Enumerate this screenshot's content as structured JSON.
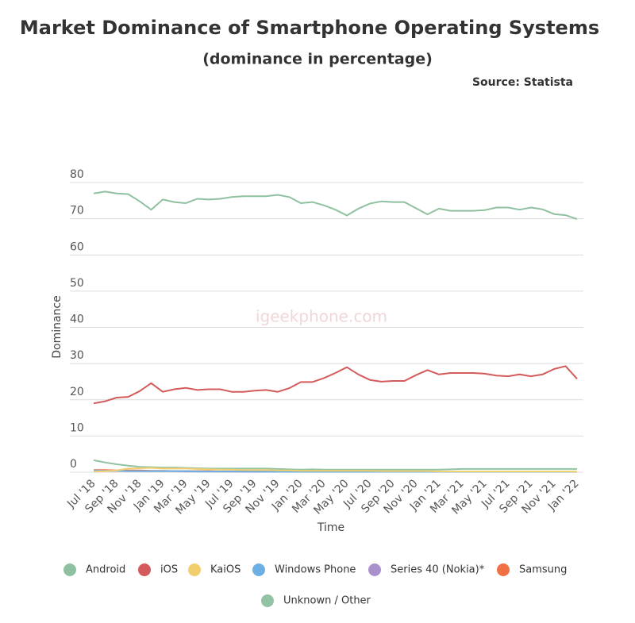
{
  "chart_data": {
    "type": "line",
    "title": "Market Dominance of Smartphone Operating Systems",
    "subtitle": "(dominance in percentage)",
    "source": "Source: Statista",
    "watermark": "igeekphone.com",
    "x_label": "Time",
    "y_label": "Dominance",
    "categories": [
      "Jul '18",
      null,
      "Sep '18",
      null,
      "Nov '18",
      null,
      "Jan '19",
      null,
      "Mar '19",
      null,
      "May '19",
      null,
      "Jul '19",
      null,
      "Sep '19",
      null,
      "Nov '19",
      null,
      "Jan '20",
      null,
      "Mar '20",
      null,
      "May '20",
      null,
      "Jul '20",
      null,
      "Sep '20",
      null,
      "Nov '20",
      null,
      "Jan '21",
      null,
      "Mar '21",
      null,
      "May '21",
      null,
      "Jul '21",
      null,
      "Sep '21",
      null,
      "Nov '21",
      null,
      "Jan '22"
    ],
    "ylim": [
      0,
      80
    ],
    "yticks": [
      0,
      10,
      20,
      30,
      40,
      50,
      60,
      70,
      80
    ],
    "grid": true,
    "series": [
      {
        "name": "Android",
        "color": "#8fc1a0",
        "values": [
          77,
          77.5,
          77,
          76.8,
          74.8,
          72.5,
          75.3,
          74.6,
          74.3,
          75.5,
          75.3,
          75.5,
          76,
          76.2,
          76.2,
          76.2,
          76.6,
          76,
          74.3,
          74.6,
          73.7,
          72.5,
          70.9,
          72.8,
          74.2,
          74.8,
          74.6,
          74.6,
          72.9,
          71.2,
          72.8,
          72.2,
          72.2,
          72.2,
          72.4,
          73.1,
          73.1,
          72.5,
          73.1,
          72.6,
          71.3,
          71,
          69.9
        ]
      },
      {
        "name": "iOS",
        "color": "#d45b5b",
        "values": [
          19,
          19.6,
          20.6,
          20.8,
          22.4,
          24.6,
          22.2,
          22.9,
          23.3,
          22.7,
          22.9,
          22.9,
          22.2,
          22.2,
          22.5,
          22.7,
          22.2,
          23.2,
          24.9,
          24.9,
          26,
          27.4,
          29,
          27,
          25.5,
          25,
          25.2,
          25.2,
          26.8,
          28.2,
          27,
          27.4,
          27.4,
          27.4,
          27.2,
          26.7,
          26.5,
          27,
          26.5,
          27,
          28.5,
          29.3,
          25.8
        ]
      },
      {
        "name": "KaiOS",
        "color": "#f1cf6f",
        "values": [
          0.2,
          0.3,
          0.5,
          1,
          1.1,
          1.2,
          1,
          1,
          1,
          0.9,
          0.8,
          0.7,
          0.7,
          0.6,
          0.6,
          0.6,
          0.5,
          0.5,
          0.4,
          0.4,
          0.4,
          0.4,
          0.4,
          0.4,
          0.4,
          0.3,
          0.3,
          0.3,
          0.3,
          0.3,
          0.2,
          0.2,
          0.2,
          0.2,
          0.2,
          0.2,
          0.2,
          0.2,
          0.2,
          0.2,
          0.2,
          0.2,
          0.2
        ]
      },
      {
        "name": "Windows Phone",
        "color": "#6cb0e3",
        "values": [
          0.4,
          0.4,
          0.4,
          0.3,
          0.3,
          0.3,
          0.3,
          0.3,
          0.3,
          0.2,
          0.2,
          0.2,
          0.2,
          0.2,
          0.2,
          0.1,
          0.1,
          0.1,
          0.1,
          0.1,
          0.1,
          0.1,
          0.1,
          0.1,
          0.1,
          0.1,
          0.1,
          0.1,
          0.1,
          0.1,
          0.1,
          0.1,
          0.1,
          0.1,
          0.1,
          0.1,
          0.1,
          0.1,
          0.1,
          0.1,
          0.1,
          0.1,
          0.1
        ]
      },
      {
        "name": "Series 40 (Nokia)*",
        "color": "#a992cc",
        "values": [
          0.5,
          0.4,
          0.4,
          0.3,
          0.3,
          0.3,
          0.3,
          0.3,
          0.2,
          0.2,
          0.2,
          0.2,
          0.2,
          0.1,
          0.1,
          0.1,
          0.1,
          0.1,
          0.1,
          0.1,
          0.1,
          0.1,
          0.1,
          0.1,
          0.1,
          0.1,
          0.1,
          0.1,
          0.1,
          0.1,
          0.1,
          0.1,
          0.1,
          0.1,
          0.1,
          0.1,
          0.1,
          0.1,
          0.1,
          0.1,
          0.1,
          0.1,
          0.1
        ]
      },
      {
        "name": "Samsung",
        "color": "#ef7042",
        "values": [
          0.6,
          0.6,
          0.5,
          0.5,
          0.5,
          0.4,
          0.4,
          0.3,
          0.3,
          0.3,
          0.3,
          0.2,
          0.2,
          0.2,
          0.2,
          0.2,
          0.2,
          0.2,
          0.1,
          0.1,
          0.1,
          0.1,
          0.1,
          0.1,
          0.1,
          0.1,
          0.1,
          0.1,
          0.1,
          0.1,
          0.1,
          0.1,
          0.1,
          0.1,
          0.1,
          0.1,
          0.1,
          0.1,
          0.1,
          0.1,
          0.1,
          0.1,
          0.1
        ]
      },
      {
        "name": "Unknown / Other",
        "color": "#93c3a5",
        "values": [
          3.3,
          2.7,
          2.2,
          1.8,
          1.5,
          1.4,
          1.3,
          1.3,
          1.2,
          1.1,
          1,
          1,
          1,
          1,
          1,
          1,
          0.9,
          0.8,
          0.7,
          0.8,
          0.7,
          0.7,
          0.7,
          0.7,
          0.7,
          0.7,
          0.7,
          0.7,
          0.7,
          0.7,
          0.7,
          0.8,
          0.9,
          0.9,
          0.9,
          0.9,
          0.9,
          0.9,
          0.9,
          0.9,
          0.9,
          0.9,
          0.9
        ]
      }
    ]
  }
}
